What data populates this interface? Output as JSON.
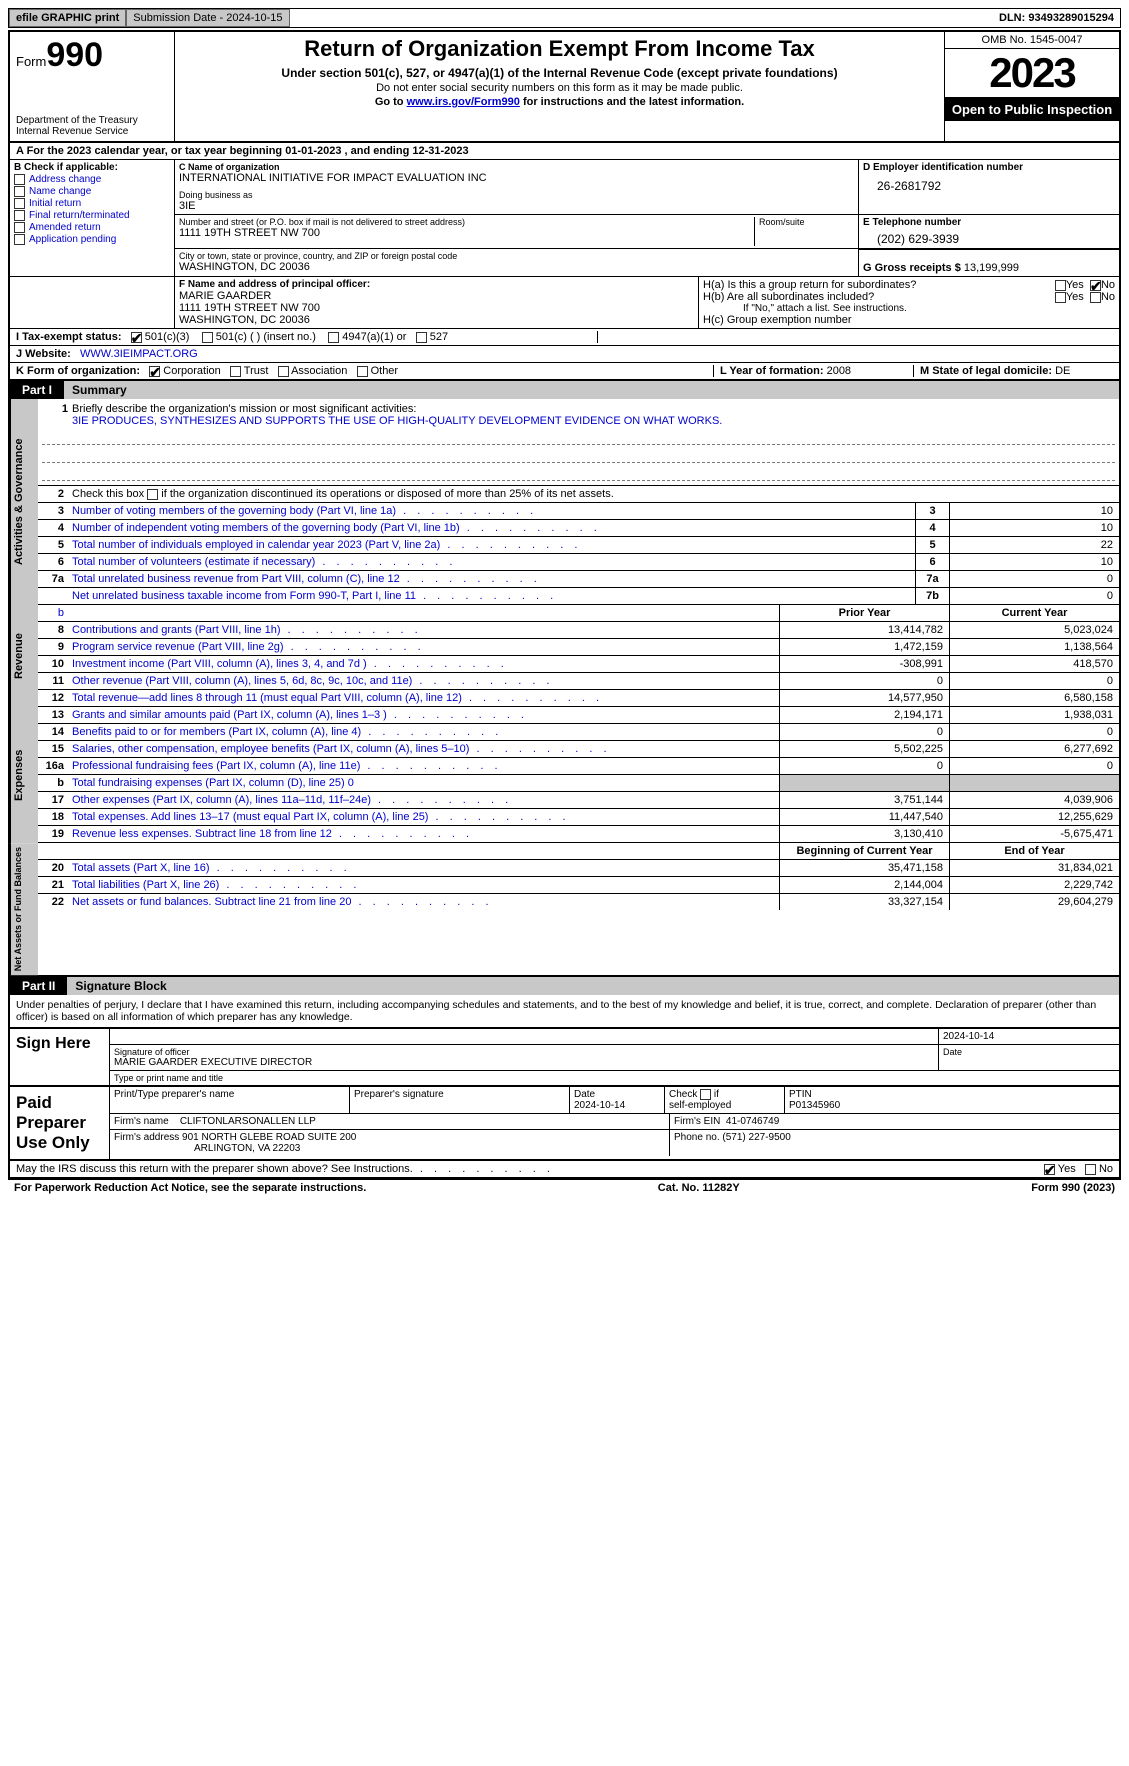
{
  "topbar": {
    "efile": "efile GRAPHIC print",
    "submission": "Submission Date - 2024-10-15",
    "dln": "DLN: 93493289015294"
  },
  "header": {
    "form_label": "Form",
    "form_num": "990",
    "title": "Return of Organization Exempt From Income Tax",
    "sub1": "Under section 501(c), 527, or 4947(a)(1) of the Internal Revenue Code (except private foundations)",
    "sub2": "Do not enter social security numbers on this form as it may be made public.",
    "sub3_pre": "Go to ",
    "sub3_link": "www.irs.gov/Form990",
    "sub3_post": " for instructions and the latest information.",
    "dept": "Department of the Treasury",
    "irs": "Internal Revenue Service",
    "omb": "OMB No. 1545-0047",
    "year": "2023",
    "inspect": "Open to Public Inspection"
  },
  "rowA": "A For the 2023 calendar year, or tax year beginning 01-01-2023    , and ending 12-31-2023",
  "sectionB": {
    "title": "B Check if applicable:",
    "items": [
      "Address change",
      "Name change",
      "Initial return",
      "Final return/terminated",
      "Amended return",
      "Application pending"
    ]
  },
  "sectionC": {
    "lbl1": "C Name of organization",
    "name": "INTERNATIONAL INITIATIVE FOR IMPACT EVALUATION INC",
    "lbl2": "Doing business as",
    "dba": "3IE",
    "lbl3": "Number and street (or P.O. box if mail is not delivered to street address)",
    "addr": "1111 19TH STREET NW 700",
    "room_lbl": "Room/suite",
    "lbl4": "City or town, state or province, country, and ZIP or foreign postal code",
    "city": "WASHINGTON, DC  20036"
  },
  "sectionD": {
    "lbl": "D Employer identification number",
    "val": "26-2681792"
  },
  "sectionE": {
    "lbl": "E Telephone number",
    "val": "(202) 629-3939"
  },
  "sectionG": {
    "lbl": "G Gross receipts $",
    "val": "13,199,999"
  },
  "sectionF": {
    "lbl": "F  Name and address of principal officer:",
    "name": "MARIE GAARDER",
    "addr1": "1111 19TH STREET NW 700",
    "addr2": "WASHINGTON, DC  20036"
  },
  "sectionH": {
    "a_lbl": "H(a)  Is this a group return for subordinates?",
    "b_lbl": "H(b)  Are all subordinates included?",
    "b_note": "If \"No,\" attach a list. See instructions.",
    "c_lbl": "H(c)  Group exemption number",
    "yes": "Yes",
    "no": "No"
  },
  "rowI": {
    "lbl": "I    Tax-exempt status:",
    "o1": "501(c)(3)",
    "o2": "501(c) (  ) (insert no.)",
    "o3": "4947(a)(1) or",
    "o4": "527"
  },
  "rowJ": {
    "lbl": "J    Website:",
    "val": "WWW.3IEIMPACT.ORG"
  },
  "rowK": {
    "lbl": "K Form of organization:",
    "o1": "Corporation",
    "o2": "Trust",
    "o3": "Association",
    "o4": "Other"
  },
  "rowL": {
    "lbl": "L Year of formation:",
    "val": "2008"
  },
  "rowM": {
    "lbl": "M State of legal domicile:",
    "val": "DE"
  },
  "part1": {
    "num": "Part I",
    "title": "Summary"
  },
  "vlabels": {
    "gov": "Activities & Governance",
    "rev": "Revenue",
    "exp": "Expenses",
    "net": "Net Assets or Fund Balances"
  },
  "mission": {
    "q": "Briefly describe the organization's mission or most significant activities:",
    "a": "3IE PRODUCES, SYNTHESIZES AND SUPPORTS THE USE OF HIGH-QUALITY DEVELOPMENT EVIDENCE ON WHAT WORKS."
  },
  "line2": "Check this box        if the organization discontinued its operations or disposed of more than 25% of its net assets.",
  "gov_rows": [
    {
      "n": "3",
      "d": "Number of voting members of the governing body (Part VI, line 1a)",
      "r": "3",
      "v": "10"
    },
    {
      "n": "4",
      "d": "Number of independent voting members of the governing body (Part VI, line 1b)",
      "r": "4",
      "v": "10"
    },
    {
      "n": "5",
      "d": "Total number of individuals employed in calendar year 2023 (Part V, line 2a)",
      "r": "5",
      "v": "22"
    },
    {
      "n": "6",
      "d": "Total number of volunteers (estimate if necessary)",
      "r": "6",
      "v": "10"
    },
    {
      "n": "7a",
      "d": "Total unrelated business revenue from Part VIII, column (C), line 12",
      "r": "7a",
      "v": "0"
    },
    {
      "n": "",
      "d": "Net unrelated business taxable income from Form 990-T, Part I, line 11",
      "r": "7b",
      "v": "0"
    }
  ],
  "col_hdr": {
    "b_blank": "b",
    "py": "Prior Year",
    "cy": "Current Year"
  },
  "rev_rows": [
    {
      "n": "8",
      "d": "Contributions and grants (Part VIII, line 1h)",
      "py": "13,414,782",
      "cy": "5,023,024"
    },
    {
      "n": "9",
      "d": "Program service revenue (Part VIII, line 2g)",
      "py": "1,472,159",
      "cy": "1,138,564"
    },
    {
      "n": "10",
      "d": "Investment income (Part VIII, column (A), lines 3, 4, and 7d )",
      "py": "-308,991",
      "cy": "418,570"
    },
    {
      "n": "11",
      "d": "Other revenue (Part VIII, column (A), lines 5, 6d, 8c, 9c, 10c, and 11e)",
      "py": "0",
      "cy": "0"
    },
    {
      "n": "12",
      "d": "Total revenue—add lines 8 through 11 (must equal Part VIII, column (A), line 12)",
      "py": "14,577,950",
      "cy": "6,580,158"
    }
  ],
  "exp_rows": [
    {
      "n": "13",
      "d": "Grants and similar amounts paid (Part IX, column (A), lines 1–3 )",
      "py": "2,194,171",
      "cy": "1,938,031"
    },
    {
      "n": "14",
      "d": "Benefits paid to or for members (Part IX, column (A), line 4)",
      "py": "0",
      "cy": "0"
    },
    {
      "n": "15",
      "d": "Salaries, other compensation, employee benefits (Part IX, column (A), lines 5–10)",
      "py": "5,502,225",
      "cy": "6,277,692"
    },
    {
      "n": "16a",
      "d": "Professional fundraising fees (Part IX, column (A), line 11e)",
      "py": "0",
      "cy": "0"
    },
    {
      "n": "b",
      "d": "Total fundraising expenses (Part IX, column (D), line 25) 0",
      "py": "",
      "cy": "",
      "shade": true
    },
    {
      "n": "17",
      "d": "Other expenses (Part IX, column (A), lines 11a–11d, 11f–24e)",
      "py": "3,751,144",
      "cy": "4,039,906"
    },
    {
      "n": "18",
      "d": "Total expenses. Add lines 13–17 (must equal Part IX, column (A), line 25)",
      "py": "11,447,540",
      "cy": "12,255,629"
    },
    {
      "n": "19",
      "d": "Revenue less expenses. Subtract line 18 from line 12",
      "py": "3,130,410",
      "cy": "-5,675,471"
    }
  ],
  "net_hdr": {
    "py": "Beginning of Current Year",
    "cy": "End of Year"
  },
  "net_rows": [
    {
      "n": "20",
      "d": "Total assets (Part X, line 16)",
      "py": "35,471,158",
      "cy": "31,834,021"
    },
    {
      "n": "21",
      "d": "Total liabilities (Part X, line 26)",
      "py": "2,144,004",
      "cy": "2,229,742"
    },
    {
      "n": "22",
      "d": "Net assets or fund balances. Subtract line 21 from line 20",
      "py": "33,327,154",
      "cy": "29,604,279"
    }
  ],
  "part2": {
    "num": "Part II",
    "title": "Signature Block"
  },
  "sig_intro": "Under penalties of perjury, I declare that I have examined this return, including accompanying schedules and statements, and to the best of my knowledge and belief, it is true, correct, and complete. Declaration of preparer (other than officer) is based on all information of which preparer has any knowledge.",
  "sign_here": {
    "title": "Sign Here",
    "date": "2024-10-14",
    "l1": "Signature of officer",
    "l2": "MARIE GAARDER  EXECUTIVE DIRECTOR",
    "l2_sub": "Type or print name and title",
    "date_lbl": "Date"
  },
  "prep": {
    "title": "Paid Preparer Use Only",
    "h1": "Print/Type preparer's name",
    "h2": "Preparer's signature",
    "h3": "Date",
    "h3v": "2024-10-14",
    "h4": "Check         if self-employed",
    "h5": "PTIN",
    "h5v": "P01345960",
    "firm_lbl": "Firm's name",
    "firm": "CLIFTONLARSONALLEN LLP",
    "ein_lbl": "Firm's EIN",
    "ein": "41-0746749",
    "addr_lbl": "Firm's address",
    "addr1": "901 NORTH GLEBE ROAD SUITE 200",
    "addr2": "ARLINGTON, VA  22203",
    "phone_lbl": "Phone no.",
    "phone": "(571) 227-9500"
  },
  "discuss": {
    "q": "May the IRS discuss this return with the preparer shown above? See Instructions.",
    "yes": "Yes",
    "no": "No"
  },
  "footer": {
    "l": "For Paperwork Reduction Act Notice, see the separate instructions.",
    "c": "Cat. No. 11282Y",
    "r": "Form 990 (2023)"
  }
}
